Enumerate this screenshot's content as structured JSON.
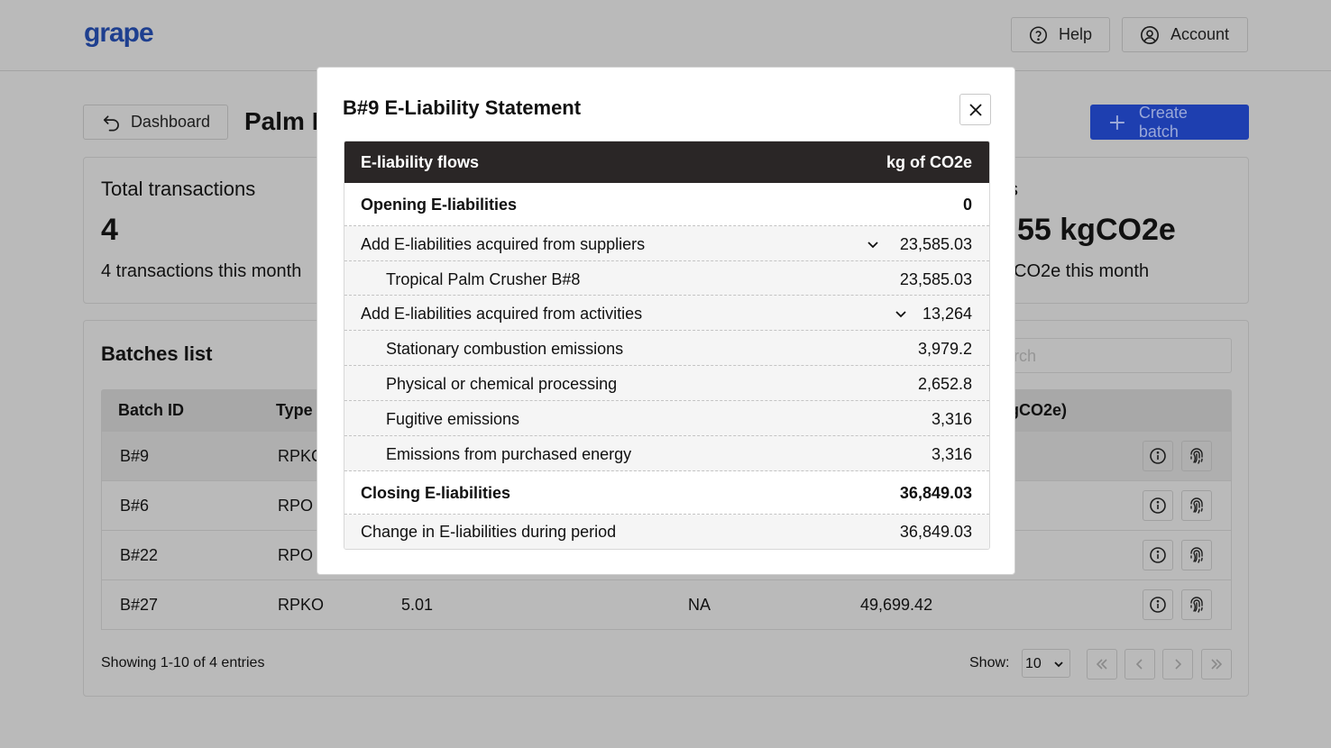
{
  "app": {
    "logo": "grape"
  },
  "header": {
    "help_label": "Help",
    "account_label": "Account"
  },
  "toolbar": {
    "dashboard_label": "Dashboard",
    "page_title": "Palm P",
    "create_label": "Create batch"
  },
  "stats": {
    "transactions": {
      "label": "Total transactions",
      "value": "4",
      "sub": "4 transactions this month"
    },
    "emissions": {
      "label": "s",
      "value": "55 kgCO2e",
      "sub": "CO2e this month"
    }
  },
  "batches": {
    "title": "Batches list",
    "search_placeholder": "arch",
    "columns": [
      "Batch ID",
      "Type",
      "gCO2e)"
    ],
    "rows": [
      {
        "id": "B#9",
        "type": "RPKC",
        "col3": "",
        "col4": "",
        "col5": ""
      },
      {
        "id": "B#6",
        "type": "RPO",
        "col3": "",
        "col4": "",
        "col5": ""
      },
      {
        "id": "B#22",
        "type": "RPO",
        "col3": "",
        "col4": "",
        "col5": ""
      },
      {
        "id": "B#27",
        "type": "RPKO",
        "col3": "5.01",
        "col4": "NA",
        "col5": "49,699.42"
      }
    ],
    "showing": "Showing 1-10 of 4 entries",
    "show_label": "Show:",
    "page_size": "10"
  },
  "modal": {
    "title": "B#9 E-Liability Statement",
    "header_left": "E-liability flows",
    "header_right": "kg of CO2e",
    "rows": [
      {
        "label": "Opening E-liabilities",
        "value": "0"
      },
      {
        "label": "Add E-liabilities acquired from suppliers",
        "value": "23,585.03"
      },
      {
        "label": "Tropical Palm Crusher B#8",
        "value": "23,585.03"
      },
      {
        "label": "Add E-liabilities acquired from activities",
        "value": "13,264"
      },
      {
        "label": "Stationary combustion emissions",
        "value": "3,979.2"
      },
      {
        "label": "Physical or chemical processing",
        "value": "2,652.8"
      },
      {
        "label": "Fugitive emissions",
        "value": "3,316"
      },
      {
        "label": "Emissions from purchased energy",
        "value": "3,316"
      },
      {
        "label": "Closing E-liabilities",
        "value": "36,849.03"
      },
      {
        "label": "Change in E-liabilities during period",
        "value": "36,849.03"
      }
    ]
  },
  "icons": {
    "help": "question-circle-icon",
    "account": "user-circle-icon",
    "dashboard": "return-arrow-icon",
    "create": "plus-icon",
    "close": "close-icon",
    "expand": "chevron-down-icon",
    "info": "info-icon",
    "fingerprint": "fingerprint-icon"
  },
  "colors": {
    "brand": "#1e3f8f",
    "accent": "#1e3fb0",
    "modal_header": "#2a2626"
  }
}
